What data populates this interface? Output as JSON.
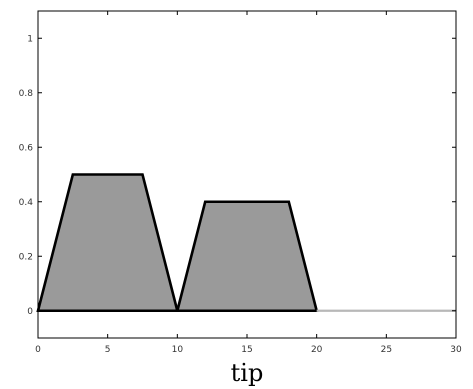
{
  "chart_data": {
    "type": "area",
    "xlabel": "tip",
    "ylabel": "",
    "xlim": [
      0,
      30
    ],
    "ylim": [
      -0.1,
      1.1
    ],
    "x_ticks": [
      0,
      5,
      10,
      15,
      20,
      25,
      30
    ],
    "y_ticks": [
      0,
      0.2,
      0.4,
      0.6,
      0.8,
      1
    ],
    "x_tick_labels": [
      "0",
      "5",
      "10",
      "15",
      "20",
      "25",
      "30"
    ],
    "y_tick_labels": [
      "0",
      "0.2",
      "0.4",
      "0.6",
      "0.8",
      "1"
    ],
    "grid": false,
    "shapes": [
      {
        "points": [
          [
            0,
            0
          ],
          [
            2.5,
            0.5
          ],
          [
            7.5,
            0.5
          ],
          [
            10,
            0
          ]
        ]
      },
      {
        "points": [
          [
            10,
            0
          ],
          [
            12,
            0.4
          ],
          [
            18,
            0.4
          ],
          [
            20,
            0
          ]
        ]
      }
    ],
    "baseline": {
      "points": [
        [
          0,
          0
        ],
        [
          20,
          0
        ]
      ],
      "extended": [
        [
          20,
          0
        ],
        [
          30,
          0
        ]
      ]
    },
    "colors": {
      "fill": "#9a9a9a",
      "edge": "#000000",
      "baseline_extension": "#b8b8b8",
      "axis": "#000000"
    }
  }
}
